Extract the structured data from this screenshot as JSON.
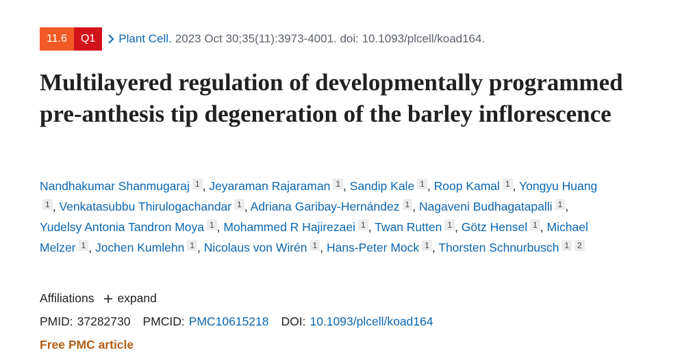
{
  "header": {
    "badges": [
      "11.6",
      "Q1"
    ],
    "journal": "Plant Cell.",
    "citation": "2023 Oct 30;35(11):3973-4001. doi: 10.1093/plcell/koad164."
  },
  "title": "Multilayered regulation of developmentally programmed pre-anthesis tip degeneration of the barley inflorescence",
  "author_separator": ",",
  "authors": [
    {
      "name": "Nandhakumar Shanmugaraj",
      "affiliations": [
        "1"
      ]
    },
    {
      "name": "Jeyaraman Rajaraman",
      "affiliations": [
        "1"
      ]
    },
    {
      "name": "Sandip Kale",
      "affiliations": [
        "1"
      ]
    },
    {
      "name": "Roop Kamal",
      "affiliations": [
        "1"
      ]
    },
    {
      "name": "Yongyu Huang",
      "affiliations": [
        "1"
      ]
    },
    {
      "name": "Venkatasubbu Thirulogachandar",
      "affiliations": [
        "1"
      ]
    },
    {
      "name": "Adriana Garibay-Hernández",
      "affiliations": [
        "1"
      ]
    },
    {
      "name": "Nagaveni Budhagatapalli",
      "affiliations": [
        "1"
      ]
    },
    {
      "name": "Yudelsy Antonia Tandron Moya",
      "affiliations": [
        "1"
      ]
    },
    {
      "name": "Mohammed R Hajirezaei",
      "affiliations": [
        "1"
      ]
    },
    {
      "name": "Twan Rutten",
      "affiliations": [
        "1"
      ]
    },
    {
      "name": "Götz Hensel",
      "affiliations": [
        "1"
      ]
    },
    {
      "name": "Michael Melzer",
      "affiliations": [
        "1"
      ]
    },
    {
      "name": "Jochen Kumlehn",
      "affiliations": [
        "1"
      ]
    },
    {
      "name": "Nicolaus von Wirén",
      "affiliations": [
        "1"
      ]
    },
    {
      "name": "Hans-Peter Mock",
      "affiliations": [
        "1"
      ]
    },
    {
      "name": "Thorsten Schnurbusch",
      "affiliations": [
        "1",
        "2"
      ]
    }
  ],
  "affiliations": {
    "label": "Affiliations",
    "toggle": "expand"
  },
  "identifiers": {
    "pmid_label": "PMID:",
    "pmid": "37282730",
    "pmcid_label": "PMCID:",
    "pmcid": "PMC10615218",
    "doi_label": "DOI:",
    "doi": "10.1093/plcell/koad164"
  },
  "free_article": "Free PMC article"
}
